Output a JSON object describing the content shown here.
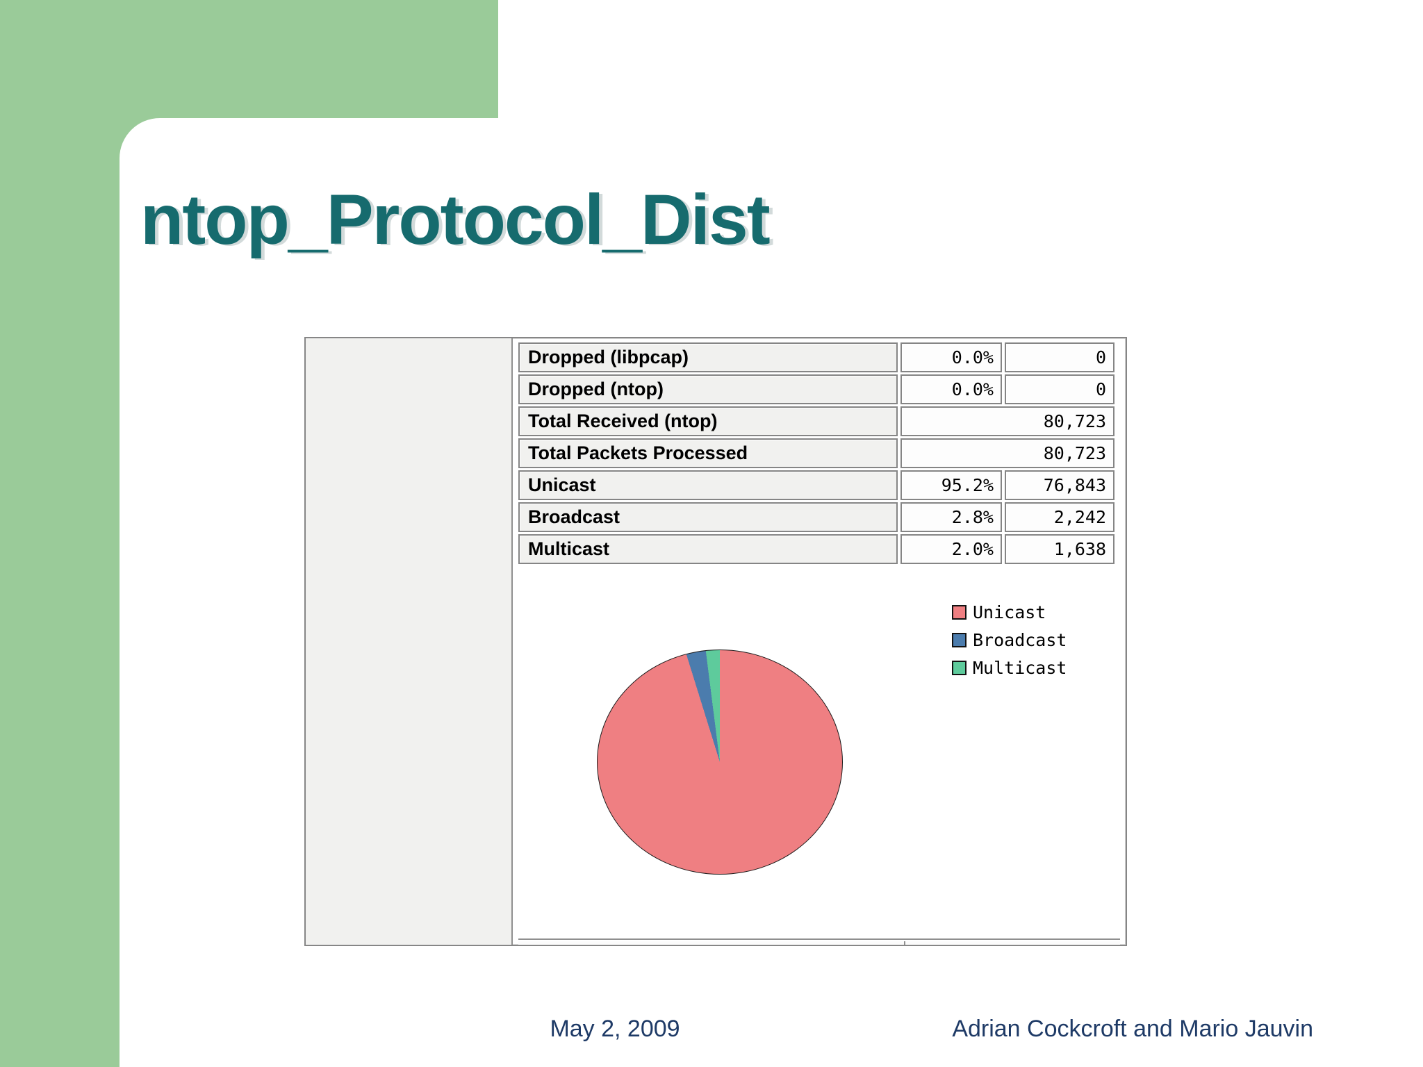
{
  "slide": {
    "title": "ntop_Protocol_Dist",
    "footer": {
      "date": "May 2, 2009",
      "authors": "Adrian Cockcroft and Mario Jauvin"
    }
  },
  "colors": {
    "accent_green": "#9acb99",
    "title_teal": "#166b6e",
    "footer_navy": "#1e3a66",
    "panel_gray": "#f1f1ef",
    "pie_unicast": "#ef7f82",
    "pie_broadcast": "#4b7cad",
    "pie_multicast": "#5ecb9c"
  },
  "table": {
    "rows": [
      {
        "label": "Dropped (libpcap)",
        "percent": "0.0%",
        "value": "0",
        "merged": false
      },
      {
        "label": "Dropped (ntop)",
        "percent": "0.0%",
        "value": "0",
        "merged": false
      },
      {
        "label": "Total Received (ntop)",
        "percent": "",
        "value": "80,723",
        "merged": true
      },
      {
        "label": "Total Packets Processed",
        "percent": "",
        "value": "80,723",
        "merged": true
      },
      {
        "label": "Unicast",
        "percent": "95.2%",
        "value": "76,843",
        "merged": false
      },
      {
        "label": "Broadcast",
        "percent": "2.8%",
        "value": "2,242",
        "merged": false
      },
      {
        "label": "Multicast",
        "percent": "2.0%",
        "value": "1,638",
        "merged": false
      }
    ]
  },
  "chart_data": {
    "type": "pie",
    "title": "",
    "labels": [
      "Unicast",
      "Broadcast",
      "Multicast"
    ],
    "values": [
      95.2,
      2.8,
      2.0
    ],
    "counts": [
      76843,
      2242,
      1638
    ],
    "colors": [
      "#ef7f82",
      "#4b7cad",
      "#5ecb9c"
    ],
    "start_angle_deg": 0,
    "direction": "clockwise",
    "legend_position": "top-right",
    "grid": false
  }
}
